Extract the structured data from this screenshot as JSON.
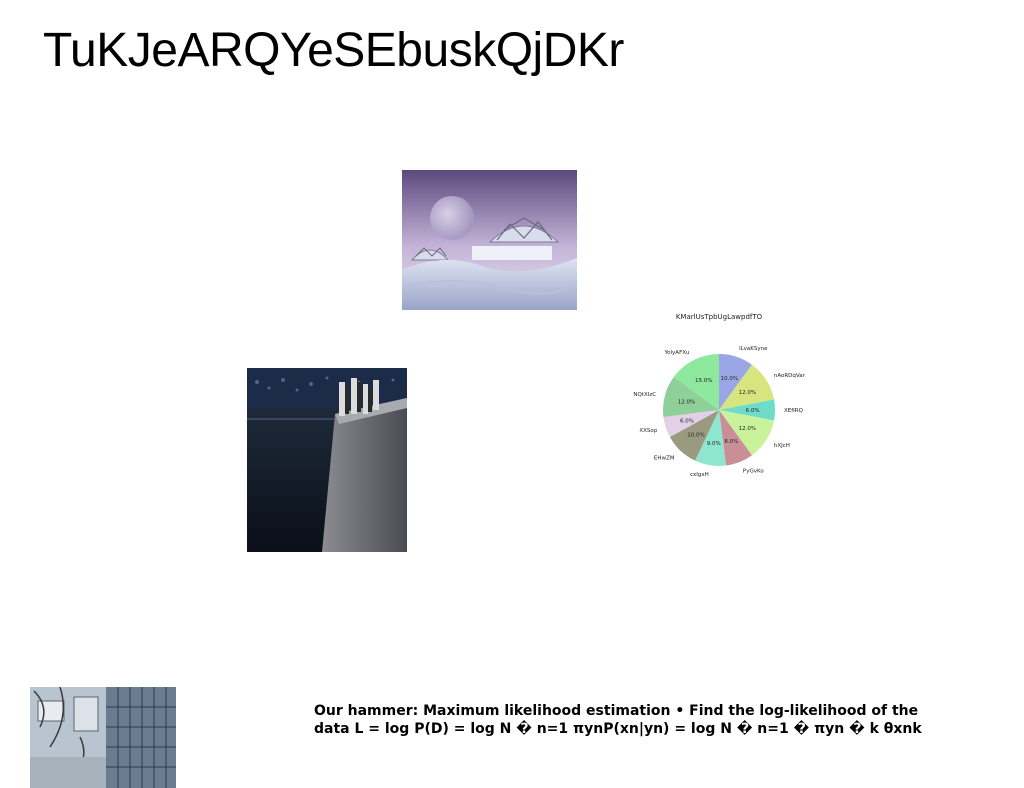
{
  "page": {
    "title": "TuKJeARQYeSEbuskQjDKr",
    "body_text": "Our hammer: Maximum likelihood estimation • Find the log-likelihood of the data L = log P(D) = log N � n=1 πynP(xn|yn) = log N � n=1 � πyn � k θxnk"
  },
  "images": {
    "domes": "domes-photo",
    "walkway": "walkway-photo",
    "wall": "wall-photo"
  },
  "chart_data": {
    "type": "pie",
    "title": "KMarlUsTpbUgLawpdfTO",
    "categories": [
      "lLvaKSyne",
      "nAoRDqVar",
      "XEfIRQ",
      "hXJcH",
      "PyGvKo",
      "cxIgxH",
      "EHwZM",
      "XXSop",
      "NQtXIzC",
      "YolyAFXu"
    ],
    "values": [
      10.0,
      12.0,
      6.0,
      12.0,
      8.0,
      9.0,
      10.0,
      6.0,
      12.0,
      15.0
    ],
    "value_labels": [
      "10.0%",
      "12.0%",
      "6.0%",
      "12.0%",
      "8.0%",
      "9.0%",
      "10.0%",
      "6.0%",
      "12.0%",
      "15.0%"
    ],
    "colors": [
      "#9aa6e6",
      "#d6e57e",
      "#6fdcc9",
      "#c9f29a",
      "#c98e96",
      "#8fe6cf",
      "#9a9a80",
      "#e3d0e8",
      "#8ecf9a",
      "#8ee89e"
    ],
    "start_angle": "12 o'clock",
    "direction": "clockwise",
    "legend": "none"
  }
}
